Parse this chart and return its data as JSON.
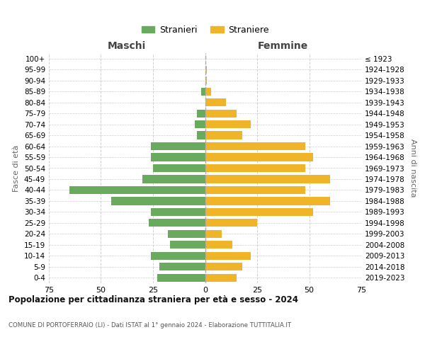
{
  "age_groups": [
    "100+",
    "95-99",
    "90-94",
    "85-89",
    "80-84",
    "75-79",
    "70-74",
    "65-69",
    "60-64",
    "55-59",
    "50-54",
    "45-49",
    "40-44",
    "35-39",
    "30-34",
    "25-29",
    "20-24",
    "15-19",
    "10-14",
    "5-9",
    "0-4"
  ],
  "birth_years": [
    "≤ 1923",
    "1924-1928",
    "1929-1933",
    "1934-1938",
    "1939-1943",
    "1944-1948",
    "1949-1953",
    "1954-1958",
    "1959-1963",
    "1964-1968",
    "1969-1973",
    "1974-1978",
    "1979-1983",
    "1984-1988",
    "1989-1993",
    "1994-1998",
    "1999-2003",
    "2004-2008",
    "2009-2013",
    "2014-2018",
    "2019-2023"
  ],
  "males": [
    0,
    0,
    0,
    2,
    0,
    4,
    5,
    4,
    26,
    26,
    25,
    30,
    65,
    45,
    26,
    27,
    18,
    17,
    26,
    22,
    23
  ],
  "females": [
    0,
    1,
    1,
    3,
    10,
    15,
    22,
    18,
    48,
    52,
    48,
    60,
    48,
    60,
    52,
    25,
    8,
    13,
    22,
    18,
    15
  ],
  "male_color": "#6aaa5e",
  "female_color": "#f0b429",
  "male_label": "Stranieri",
  "female_label": "Straniere",
  "xlim": 75,
  "title": "Popolazione per cittadinanza straniera per età e sesso - 2024",
  "subtitle": "COMUNE DI PORTOFERRAIO (LI) - Dati ISTAT al 1° gennaio 2024 - Elaborazione TUTTITALIA.IT",
  "xlabel_left": "Maschi",
  "xlabel_right": "Femmine",
  "ylabel_left": "Fasce di età",
  "ylabel_right": "Anni di nascita",
  "bg_color": "#ffffff",
  "grid_color": "#cccccc",
  "bar_height": 0.72
}
